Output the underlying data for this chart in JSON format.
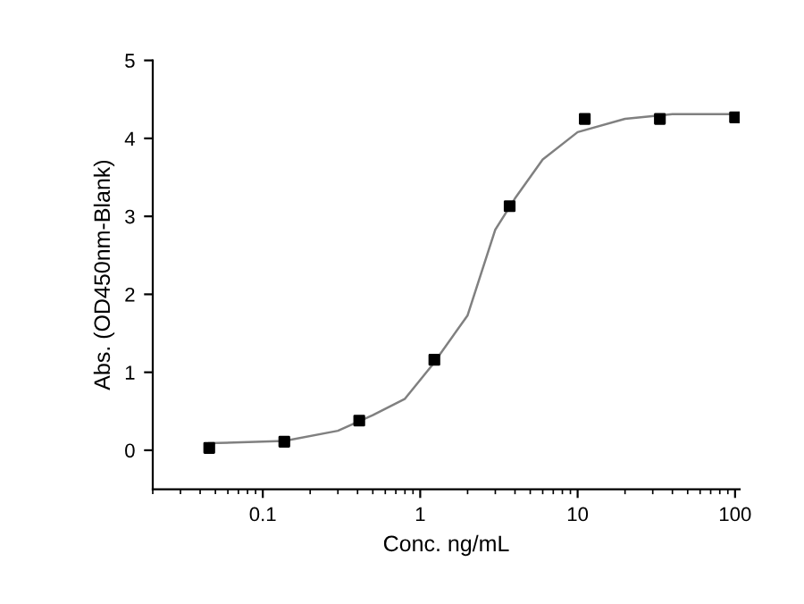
{
  "chart_data": {
    "type": "scatter",
    "xlabel": "Conc. ng/mL",
    "ylabel": "Abs. (OD450nm-Blank)",
    "log": "x",
    "marker": "square",
    "grid": false,
    "legend": false,
    "xlim": [
      0.02,
      107
    ],
    "xticks": [
      0.1,
      1,
      10,
      100
    ],
    "ylim": [
      -0.5,
      5
    ],
    "yticks": [
      0,
      1,
      2,
      3,
      4,
      5
    ],
    "series": [
      {
        "color": "#000000",
        "x": [
          0.0457,
          0.137,
          0.41,
          1.23,
          3.7,
          11.1,
          33.3,
          100
        ],
        "values": [
          0.03,
          0.11,
          0.38,
          1.16,
          3.13,
          4.25,
          4.25,
          4.27
        ]
      },
      {
        "type": "line",
        "color": "#808080",
        "marker": "none",
        "x": [
          0.0457,
          0.137,
          0.3,
          0.5,
          0.8,
          1.2,
          2,
          3,
          4,
          6,
          10,
          20,
          40,
          100
        ],
        "values": [
          0.09,
          0.12,
          0.25,
          0.45,
          0.66,
          1.1,
          1.73,
          2.83,
          3.23,
          3.73,
          4.08,
          4.25,
          4.31,
          4.31
        ]
      }
    ]
  }
}
